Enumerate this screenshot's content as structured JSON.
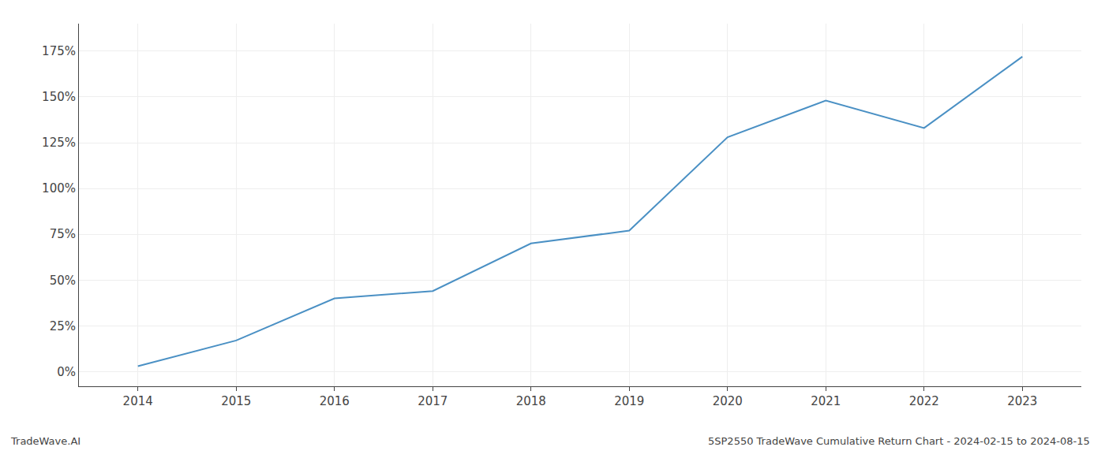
{
  "chart_data": {
    "type": "line",
    "x": [
      2014,
      2015,
      2016,
      2017,
      2018,
      2019,
      2020,
      2021,
      2022,
      2023
    ],
    "values": [
      3,
      17,
      40,
      44,
      70,
      77,
      128,
      148,
      133,
      172
    ],
    "color": "#4a90c4",
    "xlim": [
      2013.4,
      2023.6
    ],
    "xticks": [
      2014,
      2015,
      2016,
      2017,
      2018,
      2019,
      2020,
      2021,
      2022,
      2023
    ],
    "ylim": [
      -8,
      190
    ],
    "yticks": [
      {
        "value": 0,
        "label": "0%"
      },
      {
        "value": 25,
        "label": "25%"
      },
      {
        "value": 50,
        "label": "50%"
      },
      {
        "value": 75,
        "label": "75%"
      },
      {
        "value": 100,
        "label": "100%"
      },
      {
        "value": 125,
        "label": "125%"
      },
      {
        "value": 150,
        "label": "150%"
      },
      {
        "value": 175,
        "label": "175%"
      }
    ],
    "grid": true,
    "annotations": [
      "TradeWave.AI",
      "5SP2550 TradeWave Cumulative Return Chart - 2024-02-15 to 2024-08-15"
    ]
  }
}
